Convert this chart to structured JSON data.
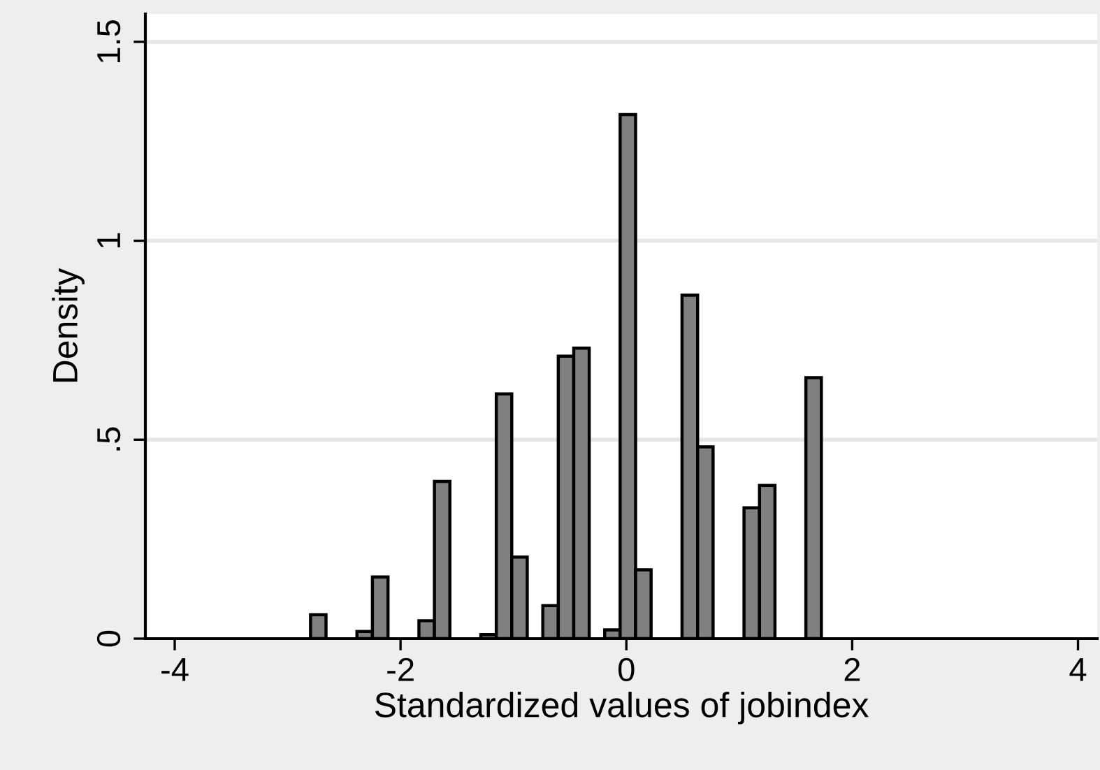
{
  "chart_data": {
    "type": "histogram",
    "xlabel": "Standardized values of jobindex",
    "ylabel": "Density",
    "bins": [
      -2.797,
      -2.66,
      -2.523,
      -2.386,
      -2.249,
      -2.111,
      -1.974,
      -1.837,
      -1.7,
      -1.563,
      -1.426,
      -1.289,
      -1.152,
      -1.015,
      -0.878,
      -0.74,
      -0.603,
      -0.466,
      -0.329,
      -0.192,
      -0.055,
      0.082,
      0.219,
      0.356,
      0.493,
      0.631,
      0.768,
      0.905,
      1.042,
      1.179,
      1.316,
      1.453,
      1.59,
      1.727
    ],
    "values": [
      0.06,
      0,
      0,
      0.018,
      0.155,
      0,
      0,
      0.045,
      0.395,
      0,
      0,
      0.01,
      0.615,
      0.205,
      0,
      0.083,
      0.71,
      0.73,
      0,
      0.022,
      1.317,
      0.173,
      0,
      0,
      0.863,
      0.482,
      0,
      0,
      0.329,
      0.385,
      0,
      0,
      0.656
    ],
    "color": "#808080",
    "xlim": [
      -4.26,
      4.17
    ],
    "xticks": [
      -4,
      -2,
      0,
      2,
      4
    ],
    "ylim": [
      0,
      1.57
    ],
    "yticks": [
      0,
      {
        "value": 0.5,
        "label": ".5"
      },
      1,
      1.5
    ],
    "grid": "y"
  }
}
